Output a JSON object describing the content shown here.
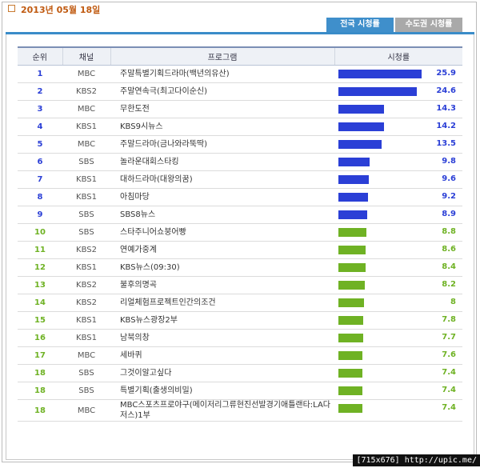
{
  "date": "2013년 05월 18일",
  "tabs": [
    "전국 시청률",
    "수도권 시청률"
  ],
  "headers": [
    "순위",
    "채널",
    "프로그램",
    "시청률"
  ],
  "bar_colors": {
    "top": "#2b3fd6",
    "rest": "#6fb224"
  },
  "rows": [
    {
      "rank": "1",
      "channel": "MBC",
      "program": "주말특별기획드라마(백년의유산)",
      "rating": 25.9,
      "group": "top"
    },
    {
      "rank": "2",
      "channel": "KBS2",
      "program": "주말연속극(최고다이순신)",
      "rating": 24.6,
      "group": "top"
    },
    {
      "rank": "3",
      "channel": "MBC",
      "program": "무한도전",
      "rating": 14.3,
      "group": "top"
    },
    {
      "rank": "4",
      "channel": "KBS1",
      "program": "KBS9시뉴스",
      "rating": 14.2,
      "group": "top"
    },
    {
      "rank": "5",
      "channel": "MBC",
      "program": "주말드라마(금나와라뚝딱)",
      "rating": 13.5,
      "group": "top"
    },
    {
      "rank": "6",
      "channel": "SBS",
      "program": "놀라운대회스타킹",
      "rating": 9.8,
      "group": "top"
    },
    {
      "rank": "7",
      "channel": "KBS1",
      "program": "대하드라마(대왕의꿈)",
      "rating": 9.6,
      "group": "top"
    },
    {
      "rank": "8",
      "channel": "KBS1",
      "program": "아침마당",
      "rating": 9.2,
      "group": "top"
    },
    {
      "rank": "9",
      "channel": "SBS",
      "program": "SBS8뉴스",
      "rating": 8.9,
      "group": "top"
    },
    {
      "rank": "10",
      "channel": "SBS",
      "program": "스타주니어쇼붕어빵",
      "rating": 8.8,
      "group": "rest"
    },
    {
      "rank": "11",
      "channel": "KBS2",
      "program": "연예가중계",
      "rating": 8.6,
      "group": "rest"
    },
    {
      "rank": "12",
      "channel": "KBS1",
      "program": "KBS뉴스(09:30)",
      "rating": 8.4,
      "group": "rest"
    },
    {
      "rank": "13",
      "channel": "KBS2",
      "program": "불후의명곡",
      "rating": 8.2,
      "group": "rest"
    },
    {
      "rank": "14",
      "channel": "KBS2",
      "program": "리얼체험프로젝트인간의조건",
      "rating": 8,
      "group": "rest"
    },
    {
      "rank": "15",
      "channel": "KBS1",
      "program": "KBS뉴스광장2부",
      "rating": 7.8,
      "group": "rest"
    },
    {
      "rank": "16",
      "channel": "KBS1",
      "program": "남북의창",
      "rating": 7.7,
      "group": "rest"
    },
    {
      "rank": "17",
      "channel": "MBC",
      "program": "세바퀴",
      "rating": 7.6,
      "group": "rest"
    },
    {
      "rank": "18",
      "channel": "SBS",
      "program": "그것이알고싶다",
      "rating": 7.4,
      "group": "rest"
    },
    {
      "rank": "18",
      "channel": "SBS",
      "program": "특별기획(출생의비밀)",
      "rating": 7.4,
      "group": "rest"
    },
    {
      "rank": "18",
      "channel": "MBC",
      "program": "MBC스포츠프로야구(메이저리그류현진선발경기애틀랜타:LA다저스)1부",
      "rating": 7.4,
      "group": "rest"
    }
  ],
  "watermark": "[715x676] http://upic.me/"
}
